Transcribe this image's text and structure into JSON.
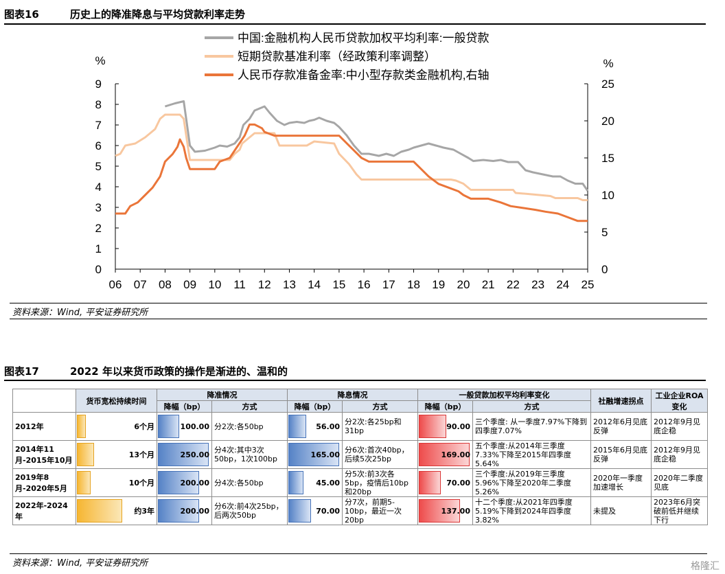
{
  "fig16": {
    "number": "图表16",
    "title": "历史上的降准降息与平均贷款利率走势",
    "source": "资料来源：Wind, 平安证券研究所"
  },
  "fig17": {
    "number": "图表17",
    "title": "2022 年以来货币政策的操作是渐进的、温和的",
    "source": "资料来源：Wind, 平安证券研究所"
  },
  "watermark": "格隆汇",
  "chart_data": {
    "type": "line",
    "title": "",
    "ylabel_left": "%",
    "ylabel_right": "%",
    "ylim_left": [
      0,
      9
    ],
    "ylim_right": [
      0,
      25
    ],
    "yticks_left": [
      "0",
      "1",
      "2",
      "3",
      "4",
      "5",
      "6",
      "7",
      "8",
      "9"
    ],
    "yticks_right": [
      "0",
      "5",
      "10",
      "15",
      "20",
      "25"
    ],
    "xticks": [
      "06",
      "07",
      "08",
      "09",
      "10",
      "11",
      "12",
      "13",
      "14",
      "15",
      "16",
      "17",
      "18",
      "19",
      "20",
      "21",
      "22",
      "23",
      "24",
      "25"
    ],
    "legend_position": "top",
    "series": [
      {
        "name": "中国:金融机构人民币贷款加权平均利率:一般贷款",
        "color": "#a6a6a6",
        "axis": "left",
        "points": [
          [
            2008.0,
            7.9
          ],
          [
            2008.4,
            8.05
          ],
          [
            2008.75,
            8.15
          ],
          [
            2008.85,
            7.3
          ],
          [
            2009.0,
            6.0
          ],
          [
            2009.2,
            5.7
          ],
          [
            2009.6,
            5.75
          ],
          [
            2010.0,
            5.9
          ],
          [
            2010.2,
            6.0
          ],
          [
            2010.5,
            5.95
          ],
          [
            2010.8,
            6.1
          ],
          [
            2011.0,
            6.4
          ],
          [
            2011.15,
            7.0
          ],
          [
            2011.4,
            7.3
          ],
          [
            2011.6,
            7.7
          ],
          [
            2011.8,
            7.8
          ],
          [
            2012.0,
            7.9
          ],
          [
            2012.2,
            7.6
          ],
          [
            2012.5,
            7.2
          ],
          [
            2012.8,
            7.0
          ],
          [
            2013.0,
            7.1
          ],
          [
            2013.3,
            7.15
          ],
          [
            2013.6,
            7.1
          ],
          [
            2013.8,
            7.2
          ],
          [
            2014.0,
            7.25
          ],
          [
            2014.2,
            7.35
          ],
          [
            2014.5,
            7.2
          ],
          [
            2014.8,
            7.1
          ],
          [
            2015.0,
            6.9
          ],
          [
            2015.3,
            6.5
          ],
          [
            2015.6,
            6.0
          ],
          [
            2015.9,
            5.6
          ],
          [
            2016.2,
            5.6
          ],
          [
            2016.6,
            5.5
          ],
          [
            2016.9,
            5.6
          ],
          [
            2017.2,
            5.5
          ],
          [
            2017.5,
            5.7
          ],
          [
            2017.8,
            5.8
          ],
          [
            2018.0,
            5.9
          ],
          [
            2018.3,
            6.0
          ],
          [
            2018.6,
            6.1
          ],
          [
            2018.9,
            6.0
          ],
          [
            2019.2,
            5.9
          ],
          [
            2019.6,
            5.8
          ],
          [
            2019.9,
            5.6
          ],
          [
            2020.2,
            5.4
          ],
          [
            2020.4,
            5.25
          ],
          [
            2020.8,
            5.3
          ],
          [
            2021.2,
            5.25
          ],
          [
            2021.5,
            5.3
          ],
          [
            2021.8,
            5.2
          ],
          [
            2022.2,
            5.2
          ],
          [
            2022.5,
            4.8
          ],
          [
            2022.8,
            4.7
          ],
          [
            2023.2,
            4.6
          ],
          [
            2023.6,
            4.5
          ],
          [
            2023.9,
            4.5
          ],
          [
            2024.2,
            4.3
          ],
          [
            2024.5,
            4.15
          ],
          [
            2024.8,
            4.15
          ],
          [
            2025.0,
            3.8
          ]
        ]
      },
      {
        "name": "短期贷款基准利率（经政策利率调整）",
        "color": "#f8c79f",
        "axis": "left",
        "points": [
          [
            2006.0,
            5.5
          ],
          [
            2006.2,
            5.6
          ],
          [
            2006.4,
            6.0
          ],
          [
            2006.8,
            6.1
          ],
          [
            2007.2,
            6.4
          ],
          [
            2007.6,
            6.8
          ],
          [
            2007.8,
            7.3
          ],
          [
            2008.0,
            7.5
          ],
          [
            2008.6,
            7.5
          ],
          [
            2008.75,
            7.3
          ],
          [
            2009.0,
            5.3
          ],
          [
            2009.5,
            5.3
          ],
          [
            2010.6,
            5.3
          ],
          [
            2010.8,
            5.6
          ],
          [
            2011.0,
            5.8
          ],
          [
            2011.1,
            6.1
          ],
          [
            2011.3,
            6.3
          ],
          [
            2011.6,
            6.6
          ],
          [
            2012.4,
            6.6
          ],
          [
            2012.6,
            6.0
          ],
          [
            2013.5,
            6.0
          ],
          [
            2013.7,
            6.0
          ],
          [
            2014.0,
            6.2
          ],
          [
            2014.8,
            6.1
          ],
          [
            2015.0,
            5.6
          ],
          [
            2015.4,
            5.1
          ],
          [
            2015.7,
            4.6
          ],
          [
            2015.9,
            4.35
          ],
          [
            2018.0,
            4.35
          ],
          [
            2019.5,
            4.35
          ],
          [
            2019.7,
            4.3
          ],
          [
            2020.0,
            4.15
          ],
          [
            2020.3,
            3.85
          ],
          [
            2022.0,
            3.85
          ],
          [
            2022.1,
            3.7
          ],
          [
            2022.6,
            3.65
          ],
          [
            2023.5,
            3.55
          ],
          [
            2023.7,
            3.45
          ],
          [
            2024.6,
            3.45
          ],
          [
            2024.8,
            3.35
          ],
          [
            2025.0,
            3.35
          ]
        ]
      },
      {
        "name": "人民币存款准备金率:中小型存款类金融机构,右轴",
        "color": "#ea7539",
        "axis": "right",
        "points": [
          [
            2006.0,
            7.5
          ],
          [
            2006.4,
            7.5
          ],
          [
            2006.6,
            8.5
          ],
          [
            2006.9,
            9.0
          ],
          [
            2007.2,
            10.0
          ],
          [
            2007.5,
            11.0
          ],
          [
            2007.8,
            12.5
          ],
          [
            2008.0,
            14.5
          ],
          [
            2008.3,
            15.5
          ],
          [
            2008.5,
            16.5
          ],
          [
            2008.6,
            17.5
          ],
          [
            2008.75,
            16.5
          ],
          [
            2008.85,
            15.0
          ],
          [
            2009.0,
            13.5
          ],
          [
            2010.0,
            13.5
          ],
          [
            2010.2,
            14.5
          ],
          [
            2010.6,
            15.0
          ],
          [
            2010.8,
            16.0
          ],
          [
            2011.0,
            17.0
          ],
          [
            2011.2,
            18.0
          ],
          [
            2011.4,
            19.5
          ],
          [
            2011.6,
            19.5
          ],
          [
            2011.9,
            19.0
          ],
          [
            2012.0,
            18.5
          ],
          [
            2012.4,
            18.0
          ],
          [
            2015.0,
            18.0
          ],
          [
            2015.3,
            17.0
          ],
          [
            2015.6,
            16.0
          ],
          [
            2015.9,
            15.0
          ],
          [
            2016.2,
            14.5
          ],
          [
            2017.8,
            14.5
          ],
          [
            2018.0,
            14.5
          ],
          [
            2018.3,
            13.5
          ],
          [
            2018.6,
            12.5
          ],
          [
            2019.0,
            11.5
          ],
          [
            2019.4,
            11.0
          ],
          [
            2019.8,
            10.5
          ],
          [
            2020.0,
            10.0
          ],
          [
            2020.3,
            9.5
          ],
          [
            2021.0,
            9.5
          ],
          [
            2021.5,
            9.0
          ],
          [
            2021.9,
            8.5
          ],
          [
            2022.4,
            8.25
          ],
          [
            2022.9,
            8.0
          ],
          [
            2023.3,
            7.75
          ],
          [
            2023.8,
            7.5
          ],
          [
            2024.2,
            7.0
          ],
          [
            2024.6,
            6.5
          ],
          [
            2025.0,
            6.5
          ]
        ]
      }
    ]
  },
  "table": {
    "headers": {
      "period_time": "货币宽松持续时间",
      "rrr_group": "降准情况",
      "rate_group": "降息情况",
      "loan_group": "一般贷款加权平均利率变化",
      "sf_inflection": "社融增速拐点",
      "roa_change": "工业企业ROA变化",
      "amp": "降幅（bp）",
      "method": "方式"
    },
    "rows": [
      {
        "label": "2012年",
        "duration": "6个月",
        "duration_months": 6,
        "rrr_bp": "100.00",
        "rrr_method": "分2次:各50bp",
        "rate_bp": "56.00",
        "rate_method": "分2次:各25bp和31bp",
        "loan_bp": "90.00",
        "loan_method": "三个季度: 从一季度7.97%下降到四季度7.07%",
        "sf": "2012年6月见底反弹",
        "roa": "2012年9月见底企稳"
      },
      {
        "label": "2014年11月-2015年10月",
        "duration": "13个月",
        "duration_months": 13,
        "rrr_bp": "250.00",
        "rrr_method": "分4次:其中3次50bp，1次100bp",
        "rate_bp": "165.00",
        "rate_method": "分6次:首次40bp，后续5次25bp",
        "loan_bp": "169.00",
        "loan_method": "五个季度:从2014年三季度7.33%下降至2015年四季度5.64%",
        "sf": "2015年6月见底反弹",
        "roa": "2012年9月见底企稳"
      },
      {
        "label": "2019年8月-2020年5月",
        "duration": "10个月",
        "duration_months": 10,
        "rrr_bp": "200.00",
        "rrr_method": "分4次:各50bp",
        "rate_bp": "45.00",
        "rate_method": "分5次:前3次各5bp，疫情后10bp和20bp",
        "loan_bp": "70.00",
        "loan_method": "三个季度:从2019年三季度5.96%下降至2020年二季度5.26%",
        "sf": "2020年一季度加速增长",
        "roa": "2020年二季度见底"
      },
      {
        "label": "2022年-2024年",
        "duration": "约3年",
        "duration_months": 36,
        "rrr_bp": "200.00",
        "rrr_method": "分6次:前4次25bp，后两次50bp",
        "rate_bp": "70.00",
        "rate_method": "分7次，前期5-10bp，最近一次20bp",
        "loan_bp": "137.00",
        "loan_method": "十二个季度:从2021年四季度5.19%下降到2024年四季度3.82%",
        "sf": "未提及",
        "roa": "2023年6月突破前低并继续下行"
      }
    ]
  }
}
